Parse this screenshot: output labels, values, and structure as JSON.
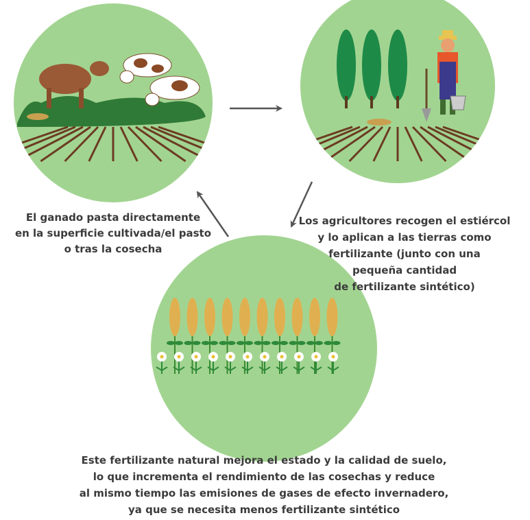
{
  "nodes": [
    {
      "caption": [
        "El ganado pasta directamente",
        "en la superficie cultivada/el pasto",
        "o tras la cosecha"
      ]
    },
    {
      "caption": [
        "Los agricultores recogen el estiércol",
        "y lo aplican a las tierras como",
        "fertilizante (junto con una",
        "pequeña cantidad",
        "de fertilizante sintético)"
      ]
    },
    {
      "caption": [
        "Este fertilizante natural mejora el estado y la calidad de suelo,",
        "lo que incrementa el rendimiento de las cosechas y reduce",
        "al mismo tiempo las emisiones de gases de efecto invernadero,",
        "ya que se necesita menos fertilizante sintético"
      ]
    }
  ]
}
